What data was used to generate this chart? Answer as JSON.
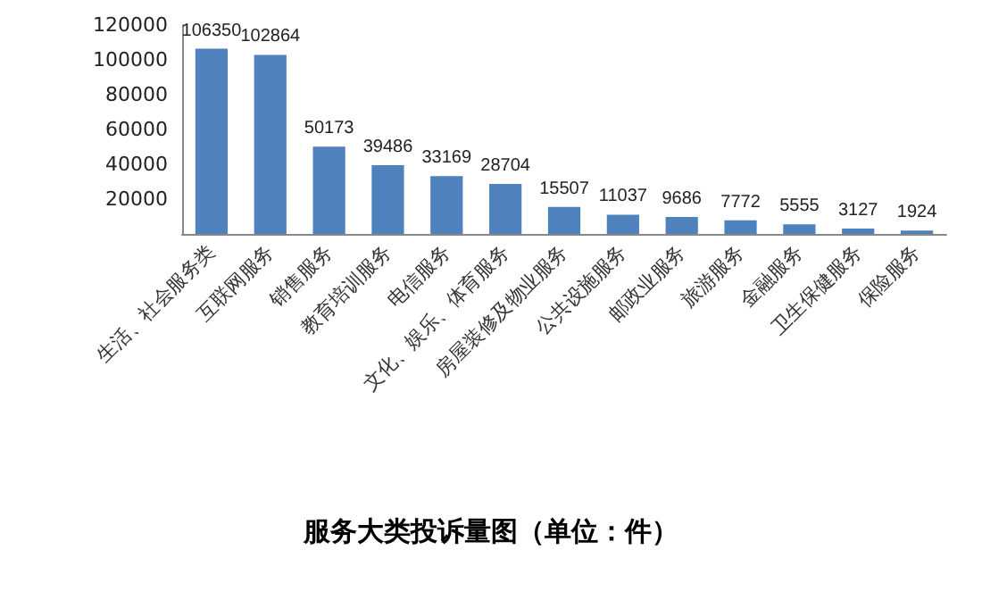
{
  "chart_data": {
    "type": "bar",
    "title": "服务大类投诉量图（单位：件）",
    "categories": [
      "生活、社会服务类",
      "互联网服务",
      "销售服务",
      "教育培训服务",
      "电信服务",
      "文化、娱乐、体育服务",
      "房屋装修及物业服务",
      "公共设施服务",
      "邮政业服务",
      "旅游服务",
      "金融服务",
      "卫生保健服务",
      "保险服务"
    ],
    "values": [
      106350,
      102864,
      50173,
      39486,
      33169,
      28704,
      15507,
      11037,
      9686,
      7772,
      5555,
      3127,
      1924
    ],
    "color": "#4f81bd",
    "data_labels": true,
    "grid": false,
    "ylim": [
      0,
      120000
    ],
    "yticks": [
      20000,
      40000,
      60000,
      80000,
      100000,
      120000
    ]
  }
}
